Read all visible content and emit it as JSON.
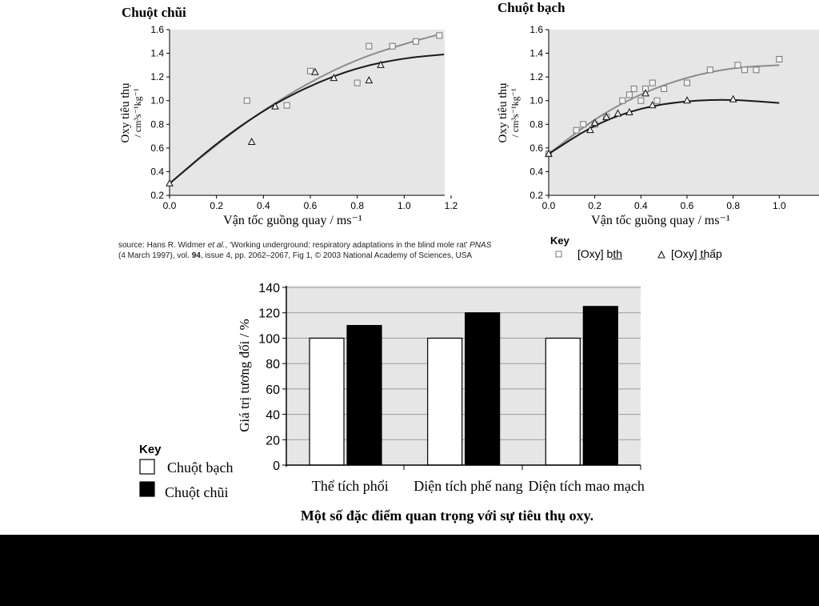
{
  "charts": {
    "mole": {
      "title": "Chuột chũi"
    },
    "rat": {
      "title": "Chuột bạch"
    },
    "bar": {
      "caption": "Một số đặc điểm quan trọng với sự tiêu thụ oxy."
    }
  },
  "source_text": {
    "line1_prefix": "source: Hans R. Widmer ",
    "line1_etal": "et al.",
    "line1_rest": ", ‘Working underground: respiratory adaptations in the blind mole rat’ ",
    "line1_journal": "PNAS",
    "line2_prefix": "(4 March 1997), vol. ",
    "line2_vol": "94",
    "line2_rest": ", issue 4, pp. 2062–2067, Fig 1, © 2003 National Academy of Sciences, USA"
  },
  "key_top": {
    "title": "Key",
    "normal_label": "[Oxy] bt̲h̲",
    "low_label": "[Oxy] t̲hấp"
  },
  "key_bottom": {
    "title": "Key",
    "white_label": "Chuột bạch",
    "black_label": "Chuột chũi"
  },
  "chart_data": [
    {
      "type": "scatter",
      "title": "Chuột chũi",
      "xlabel": "Vận tốc guồng quay  / ms⁻¹",
      "ylabel_line1": "Oxy tiêu thụ",
      "ylabel_line2": "/ cm³s⁻¹kg⁻¹",
      "xlim": [
        0,
        1.2
      ],
      "ylim": [
        0.2,
        1.6
      ],
      "xticks": [
        "0.0",
        "0.2",
        "0.4",
        "0.6",
        "0.8",
        "1.0",
        "1.2"
      ],
      "yticks": [
        "0.2",
        "0.4",
        "0.6",
        "0.8",
        "1.0",
        "1.2",
        "1.4",
        "1.6"
      ],
      "series": [
        {
          "marker": "square",
          "color": "#8c8c8c",
          "points": [
            [
              0.33,
              1.0
            ],
            [
              0.5,
              0.96
            ],
            [
              0.6,
              1.25
            ],
            [
              0.8,
              1.15
            ],
            [
              0.85,
              1.46
            ],
            [
              0.95,
              1.46
            ],
            [
              1.05,
              1.5
            ],
            [
              1.15,
              1.55
            ]
          ],
          "curve": [
            [
              0.0,
              0.3
            ],
            [
              0.2,
              0.63
            ],
            [
              0.4,
              0.92
            ],
            [
              0.6,
              1.16
            ],
            [
              0.8,
              1.35
            ],
            [
              1.0,
              1.48
            ],
            [
              1.15,
              1.56
            ]
          ]
        },
        {
          "marker": "triangle",
          "color": "#1a1a1a",
          "points": [
            [
              0.0,
              0.3
            ],
            [
              0.35,
              0.65
            ],
            [
              0.45,
              0.95
            ],
            [
              0.62,
              1.24
            ],
            [
              0.7,
              1.19
            ],
            [
              0.85,
              1.17
            ],
            [
              0.9,
              1.3
            ]
          ],
          "curve": [
            [
              0.0,
              0.3
            ],
            [
              0.2,
              0.64
            ],
            [
              0.4,
              0.92
            ],
            [
              0.6,
              1.13
            ],
            [
              0.8,
              1.28
            ],
            [
              1.0,
              1.36
            ],
            [
              1.17,
              1.39
            ]
          ]
        }
      ]
    },
    {
      "type": "scatter",
      "title": "Chuột bạch",
      "xlabel": "Vận tốc guồng quay  / ms⁻¹",
      "ylabel_line1": "Oxy tiêu thụ",
      "ylabel_line2": "/ cm³s⁻¹kg⁻¹",
      "xlim": [
        0,
        1.2
      ],
      "ylim": [
        0.2,
        1.6
      ],
      "xticks": [
        "0.0",
        "0.2",
        "0.4",
        "0.6",
        "0.8",
        "1.0"
      ],
      "yticks": [
        "0.2",
        "0.4",
        "0.6",
        "0.8",
        "1.0",
        "1.2",
        "1.4",
        "1.6"
      ],
      "series": [
        {
          "name": "[Oxy] bt̲h̲",
          "marker": "square",
          "color": "#8c8c8c",
          "points": [
            [
              0.0,
              0.55
            ],
            [
              0.12,
              0.75
            ],
            [
              0.15,
              0.8
            ],
            [
              0.2,
              0.8
            ],
            [
              0.25,
              0.86
            ],
            [
              0.32,
              1.0
            ],
            [
              0.35,
              1.05
            ],
            [
              0.37,
              1.1
            ],
            [
              0.4,
              1.0
            ],
            [
              0.42,
              1.1
            ],
            [
              0.45,
              1.15
            ],
            [
              0.47,
              1.0
            ],
            [
              0.5,
              1.1
            ],
            [
              0.6,
              1.15
            ],
            [
              0.7,
              1.26
            ],
            [
              0.82,
              1.3
            ],
            [
              0.85,
              1.26
            ],
            [
              0.9,
              1.26
            ],
            [
              1.0,
              1.35
            ]
          ],
          "curve": [
            [
              0.0,
              0.55
            ],
            [
              0.2,
              0.85
            ],
            [
              0.4,
              1.06
            ],
            [
              0.6,
              1.2
            ],
            [
              0.8,
              1.28
            ],
            [
              1.0,
              1.3
            ]
          ]
        },
        {
          "name": "[Oxy] t̲hấp",
          "marker": "triangle",
          "color": "#1a1a1a",
          "points": [
            [
              0.0,
              0.55
            ],
            [
              0.18,
              0.75
            ],
            [
              0.2,
              0.81
            ],
            [
              0.25,
              0.86
            ],
            [
              0.3,
              0.89
            ],
            [
              0.35,
              0.9
            ],
            [
              0.42,
              1.06
            ],
            [
              0.45,
              0.96
            ],
            [
              0.6,
              1.0
            ],
            [
              0.8,
              1.01
            ]
          ],
          "curve": [
            [
              0.0,
              0.55
            ],
            [
              0.2,
              0.8
            ],
            [
              0.4,
              0.94
            ],
            [
              0.6,
              1.0
            ],
            [
              0.8,
              1.01
            ],
            [
              1.0,
              0.98
            ]
          ]
        }
      ]
    },
    {
      "type": "bar",
      "caption": "Một số đặc điểm quan trọng với sự tiêu thụ oxy.",
      "ylabel": "Giá trị tương đối  / %",
      "categories": [
        "Thể tích phổi",
        "Diện tích phế nang",
        "Diện tích mao mạch"
      ],
      "ylim": [
        0,
        140
      ],
      "yticks": [
        "0",
        "20",
        "40",
        "60",
        "80",
        "100",
        "120",
        "140"
      ],
      "grid": true,
      "series": [
        {
          "name": "Chuột bạch",
          "color": "#ffffff",
          "values": [
            100,
            100,
            100
          ]
        },
        {
          "name": "Chuột chũi",
          "color": "#000000",
          "values": [
            110,
            120,
            125
          ]
        }
      ]
    }
  ]
}
